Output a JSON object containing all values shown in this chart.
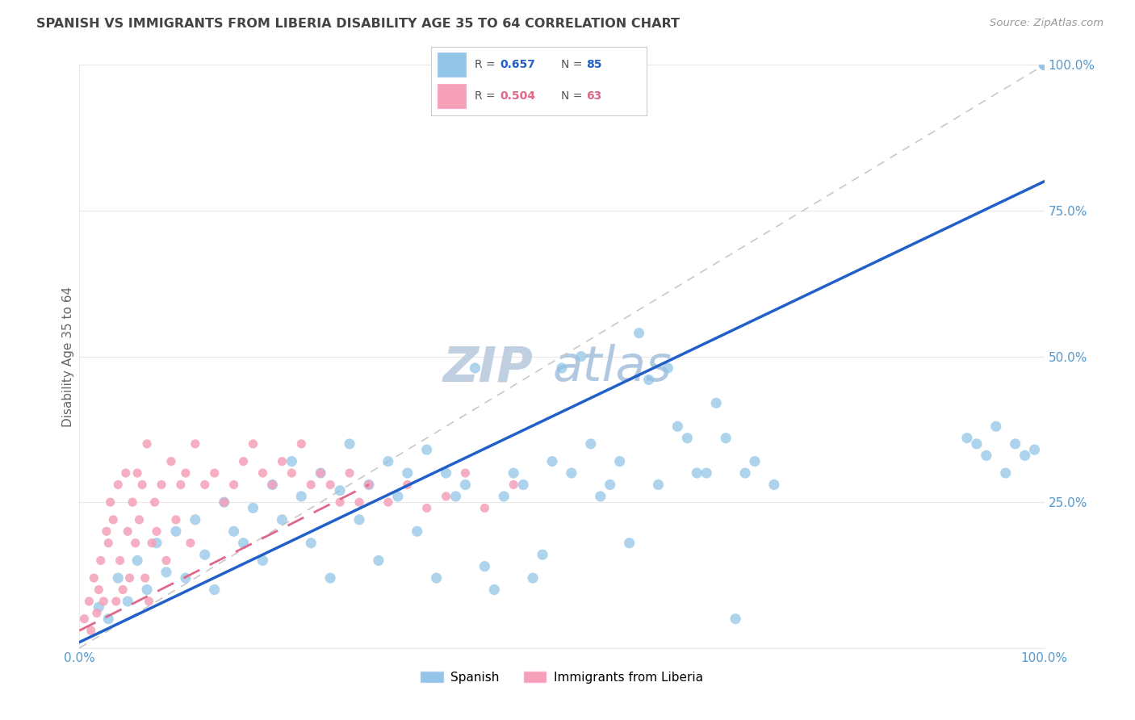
{
  "title": "SPANISH VS IMMIGRANTS FROM LIBERIA DISABILITY AGE 35 TO 64 CORRELATION CHART",
  "source": "Source: ZipAtlas.com",
  "ylabel": "Disability Age 35 to 64",
  "R_blue": 0.657,
  "N_blue": 85,
  "R_pink": 0.504,
  "N_pink": 63,
  "blue_scatter_color": "#92C5E8",
  "pink_scatter_color": "#F5A0B8",
  "blue_line_color": "#2060C8",
  "pink_line_color": "#E06888",
  "diagonal_color": "#C8C8C8",
  "watermark_zip_color": "#C0D0E0",
  "watermark_atlas_color": "#B0C8E0",
  "background_color": "#FFFFFF",
  "grid_color": "#E8E8E8",
  "title_color": "#444444",
  "source_color": "#999999",
  "axis_tick_color": "#5599CC",
  "ylabel_color": "#666666",
  "legend_label_blue": "Spanish",
  "legend_label_pink": "Immigrants from Liberia",
  "legend_R_color": "#555555",
  "legend_N_color": "#555555",
  "xlim": [
    0,
    100
  ],
  "ylim": [
    0,
    100
  ],
  "x_ticks": [
    0,
    100
  ],
  "x_ticklabels": [
    "0.0%",
    "100.0%"
  ],
  "y_ticks": [
    0,
    25,
    50,
    75,
    100
  ],
  "y_ticklabels": [
    "",
    "25.0%",
    "50.0%",
    "75.0%",
    "100.0%"
  ],
  "blue_line_x": [
    0,
    100
  ],
  "blue_line_y": [
    1,
    80
  ],
  "pink_line_x": [
    0,
    30
  ],
  "pink_line_y": [
    3,
    28
  ],
  "diag_line_x": [
    0,
    100
  ],
  "diag_line_y": [
    0,
    100
  ],
  "blue_scatter_x": [
    2,
    3,
    4,
    5,
    6,
    7,
    8,
    9,
    10,
    11,
    12,
    13,
    14,
    15,
    16,
    17,
    18,
    19,
    20,
    21,
    22,
    23,
    24,
    25,
    26,
    27,
    28,
    29,
    30,
    31,
    32,
    33,
    34,
    35,
    36,
    37,
    38,
    39,
    40,
    41,
    42,
    43,
    44,
    45,
    46,
    47,
    48,
    49,
    50,
    51,
    52,
    53,
    54,
    55,
    56,
    57,
    58,
    59,
    60,
    61,
    62,
    63,
    64,
    65,
    66,
    67,
    68,
    69,
    70,
    72,
    92,
    93,
    94,
    95,
    96,
    97,
    98,
    99,
    100,
    100,
    100,
    100,
    100,
    100,
    100
  ],
  "blue_scatter_y": [
    7,
    5,
    12,
    8,
    15,
    10,
    18,
    13,
    20,
    12,
    22,
    16,
    10,
    25,
    20,
    18,
    24,
    15,
    28,
    22,
    32,
    26,
    18,
    30,
    12,
    27,
    35,
    22,
    28,
    15,
    32,
    26,
    30,
    20,
    34,
    12,
    30,
    26,
    28,
    48,
    14,
    10,
    26,
    30,
    28,
    12,
    16,
    32,
    48,
    30,
    50,
    35,
    26,
    28,
    32,
    18,
    54,
    46,
    28,
    48,
    38,
    36,
    30,
    30,
    42,
    36,
    5,
    30,
    32,
    28,
    36,
    35,
    33,
    38,
    30,
    35,
    33,
    34,
    100,
    100,
    100,
    100,
    100,
    100,
    100
  ],
  "pink_scatter_x": [
    0.5,
    1.0,
    1.2,
    1.5,
    1.8,
    2.0,
    2.2,
    2.5,
    2.8,
    3.0,
    3.2,
    3.5,
    3.8,
    4.0,
    4.2,
    4.5,
    4.8,
    5.0,
    5.2,
    5.5,
    5.8,
    6.0,
    6.2,
    6.5,
    6.8,
    7.0,
    7.2,
    7.5,
    7.8,
    8.0,
    8.5,
    9.0,
    9.5,
    10.0,
    10.5,
    11.0,
    11.5,
    12.0,
    13.0,
    14.0,
    15.0,
    16.0,
    17.0,
    18.0,
    19.0,
    20.0,
    21.0,
    22.0,
    23.0,
    24.0,
    25.0,
    26.0,
    27.0,
    28.0,
    29.0,
    30.0,
    32.0,
    34.0,
    36.0,
    38.0,
    40.0,
    42.0,
    45.0
  ],
  "pink_scatter_y": [
    5,
    8,
    3,
    12,
    6,
    10,
    15,
    8,
    20,
    18,
    25,
    22,
    8,
    28,
    15,
    10,
    30,
    20,
    12,
    25,
    18,
    30,
    22,
    28,
    12,
    35,
    8,
    18,
    25,
    20,
    28,
    15,
    32,
    22,
    28,
    30,
    18,
    35,
    28,
    30,
    25,
    28,
    32,
    35,
    30,
    28,
    32,
    30,
    35,
    28,
    30,
    28,
    25,
    30,
    25,
    28,
    25,
    28,
    24,
    26,
    30,
    24,
    28
  ]
}
